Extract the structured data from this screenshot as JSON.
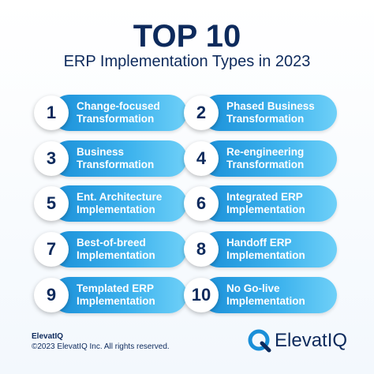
{
  "header": {
    "title": "TOP 10",
    "subtitle": "ERP Implementation Types in 2023"
  },
  "items": [
    {
      "number": "1",
      "lines": [
        "Change-focused",
        "Transformation"
      ]
    },
    {
      "number": "2",
      "lines": [
        "Phased Business",
        "Transformation"
      ]
    },
    {
      "number": "3",
      "lines": [
        "Business",
        "Transformation"
      ]
    },
    {
      "number": "4",
      "lines": [
        "Re-engineering",
        "Transformation"
      ]
    },
    {
      "number": "5",
      "lines": [
        "Ent. Architecture",
        "Implementation"
      ]
    },
    {
      "number": "6",
      "lines": [
        "Integrated ERP",
        "Implementation"
      ]
    },
    {
      "number": "7",
      "lines": [
        "Best-of-breed",
        "Implementation"
      ]
    },
    {
      "number": "8",
      "lines": [
        "Handoff ERP",
        "Implementation"
      ]
    },
    {
      "number": "9",
      "lines": [
        "Templated ERP",
        "Implementation"
      ]
    },
    {
      "number": "10",
      "lines": [
        "No Go-live",
        "Implementation"
      ]
    }
  ],
  "footer": {
    "company": "ElevatIQ",
    "copyright": "©2023 ElevatIQ Inc. All rights reserved.",
    "logo_text": "ElevatIQ"
  }
}
